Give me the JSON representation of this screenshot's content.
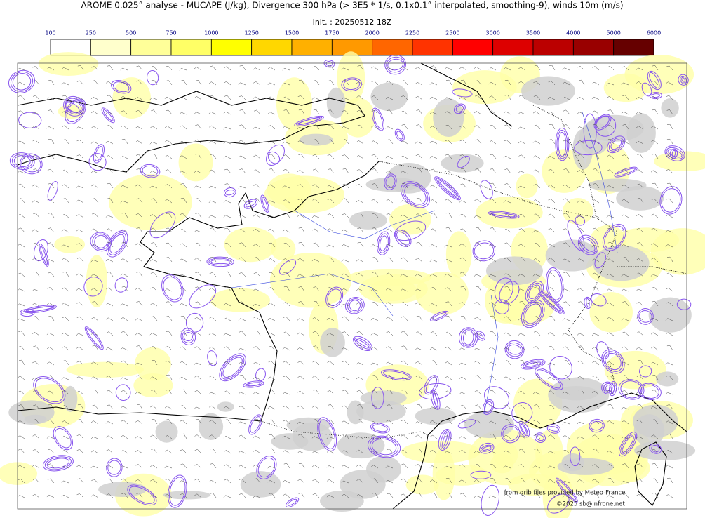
{
  "title": "AROME 0.025° analyse - MUCAPE (J/kg), Divergence 300 hPa (> 3E5 * 1/s, 0.1x0.1° interpolated, smoothing-9), winds 10m (m/s)",
  "init": "Init. : 20250512 18Z",
  "colorbar": {
    "levels": [
      100,
      250,
      500,
      750,
      1000,
      1250,
      1500,
      1750,
      2000,
      2250,
      2500,
      3000,
      3500,
      4000,
      5000,
      6000
    ],
    "colors": [
      "#ffffff",
      "#ffffcc",
      "#ffff99",
      "#ffff66",
      "#ffff00",
      "#ffd700",
      "#ffb000",
      "#ff9900",
      "#ff6600",
      "#ff3300",
      "#ff0000",
      "#dd0000",
      "#bb0000",
      "#990000",
      "#660000"
    ]
  },
  "credits": [
    "from grib files provided by Meteo-France",
    "©2025 sb@infrone.net"
  ]
}
